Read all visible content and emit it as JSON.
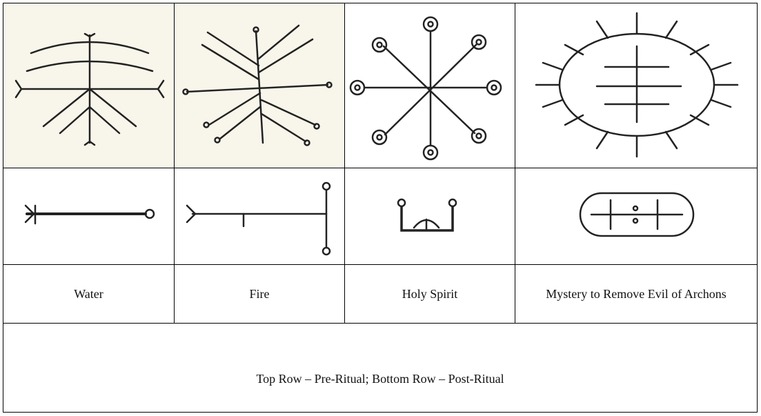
{
  "table": {
    "labels": [
      "Water",
      "Fire",
      "Holy Spirit",
      "Mystery to Remove Evil of Archons"
    ],
    "caption": "Top Row – Pre-Ritual; Bottom Row – Post-Ritual"
  }
}
